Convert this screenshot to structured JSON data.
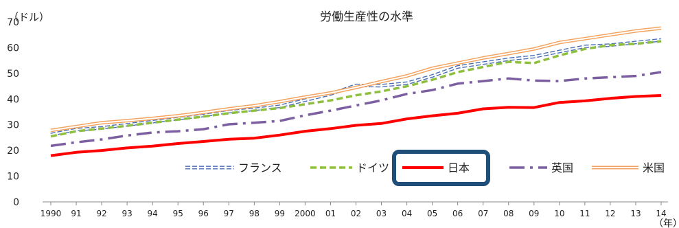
{
  "chart_data": {
    "type": "line",
    "title": "労働生産性の水準",
    "ylabel": "（ドル）",
    "xlabel": "（年）",
    "ylim": [
      0,
      70
    ],
    "yticks": [
      0,
      10,
      20,
      30,
      40,
      50,
      60,
      70
    ],
    "grid": false,
    "legend_position": "bottom-right, inside",
    "categories": [
      "1990",
      "91",
      "92",
      "93",
      "94",
      "95",
      "96",
      "97",
      "98",
      "99",
      "2000",
      "01",
      "02",
      "03",
      "04",
      "05",
      "06",
      "07",
      "08",
      "09",
      "10",
      "11",
      "12",
      "13",
      "14"
    ],
    "series": [
      {
        "name": "フランス",
        "style": "double-dashed",
        "color": "#4a6fb5",
        "values": [
          26.2,
          28.1,
          28.8,
          30.0,
          31.2,
          32.4,
          33.6,
          35.1,
          36.0,
          37.2,
          39.6,
          42.0,
          45.3,
          45.2,
          46.2,
          49.0,
          52.5,
          54.0,
          55.5,
          56.5,
          58.5,
          60.5,
          61.0,
          62.0,
          63.0
        ]
      },
      {
        "name": "ドイツ",
        "style": "dashed",
        "color": "#8fbf3f",
        "values": [
          25.5,
          27.5,
          28.5,
          29.6,
          30.8,
          32.0,
          33.2,
          34.5,
          35.5,
          36.5,
          38.0,
          39.5,
          41.5,
          43.0,
          45.0,
          47.5,
          50.5,
          52.5,
          54.5,
          54.0,
          57.0,
          59.5,
          61.0,
          61.5,
          62.5
        ]
      },
      {
        "name": "日本",
        "style": "solid-thick",
        "color": "#ff0000",
        "values": [
          18.0,
          19.3,
          20.0,
          21.0,
          21.7,
          22.7,
          23.5,
          24.4,
          24.8,
          26.0,
          27.5,
          28.5,
          29.8,
          30.5,
          32.3,
          33.5,
          34.5,
          36.2,
          36.8,
          36.7,
          38.7,
          39.3,
          40.3,
          41.0,
          41.4
        ]
      },
      {
        "name": "英国",
        "style": "dash-dot",
        "color": "#7c5fa0",
        "values": [
          21.8,
          23.2,
          24.3,
          25.8,
          27.0,
          27.5,
          28.3,
          30.2,
          30.8,
          31.5,
          33.7,
          35.5,
          37.5,
          39.5,
          42.0,
          43.5,
          46.0,
          47.0,
          48.0,
          47.2,
          47.0,
          48.0,
          48.5,
          49.0,
          50.5
        ]
      },
      {
        "name": "米国",
        "style": "double-solid",
        "color": "#f4a460",
        "values": [
          27.8,
          29.3,
          30.8,
          31.6,
          32.5,
          33.5,
          34.8,
          36.2,
          37.4,
          39.0,
          40.8,
          42.4,
          44.5,
          46.8,
          49.0,
          52.0,
          54.0,
          56.0,
          57.7,
          59.5,
          62.0,
          63.5,
          65.0,
          66.5,
          67.6
        ]
      }
    ],
    "highlight_legend_item": "日本",
    "highlight_color": "#1f4e79"
  }
}
